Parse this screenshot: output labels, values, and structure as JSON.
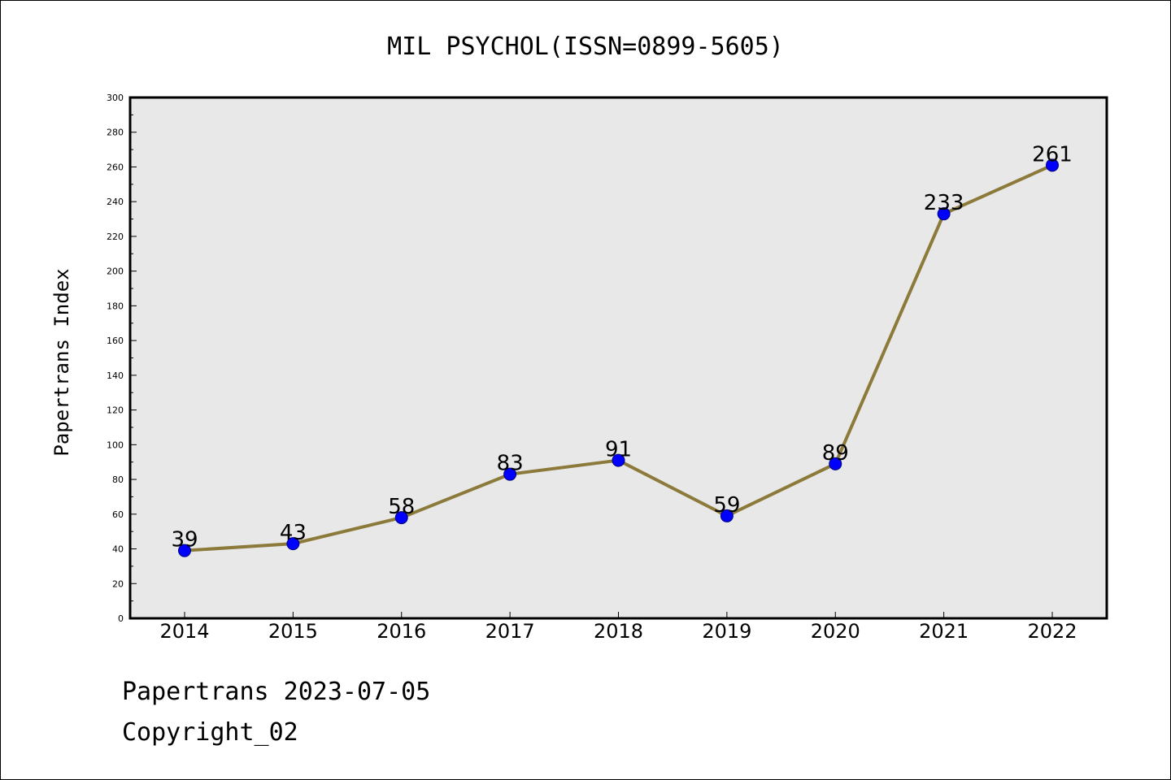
{
  "chart_data": {
    "type": "line",
    "title": "MIL PSYCHOL(ISSN=0899-5605)",
    "xlabel": "",
    "ylabel": "Papertrans Index",
    "categories": [
      "2014",
      "2015",
      "2016",
      "2017",
      "2018",
      "2019",
      "2020",
      "2021",
      "2022"
    ],
    "values": [
      39,
      43,
      58,
      83,
      91,
      59,
      89,
      233,
      261
    ],
    "data_labels": [
      "39",
      "43",
      "58",
      "83",
      "91",
      "59",
      "89",
      "233",
      "261"
    ],
    "ylim": [
      0,
      300
    ],
    "yticks": [
      0,
      20,
      40,
      60,
      80,
      100,
      120,
      140,
      160,
      180,
      200,
      220,
      240,
      260,
      280,
      300
    ],
    "grid": false,
    "colors": {
      "line": "#8B7A3A",
      "marker_fill": "#0000FF",
      "marker_edge": "#000080",
      "plot_background": "#E8E8E8"
    }
  },
  "footer": {
    "date_text": "Papertrans 2023-07-05",
    "copyright_text": "Copyright_02"
  }
}
